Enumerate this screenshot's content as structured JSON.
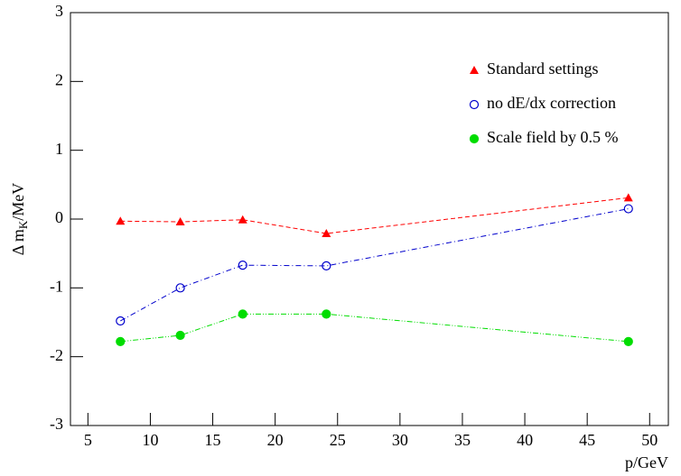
{
  "chart_data": {
    "type": "line",
    "ylabel": [
      "Δ m",
      "K",
      "/MeV"
    ],
    "xlabel": "p/GeV",
    "xlim": [
      3.6,
      51.5
    ],
    "xticks": [
      5,
      10,
      15,
      20,
      25,
      30,
      35,
      40,
      45,
      50
    ],
    "ylim": [
      -3,
      3
    ],
    "yticks": [
      -3,
      -2,
      -1,
      0,
      1,
      2,
      3
    ],
    "legend": "upper right",
    "series": [
      {
        "name": "Standard settings",
        "color": "#ff0000",
        "marker": "triangle",
        "dash": "5,3",
        "x": [
          7.6,
          12.4,
          17.4,
          24.1,
          48.3
        ],
        "values": [
          -0.03,
          -0.04,
          -0.01,
          -0.21,
          0.31
        ]
      },
      {
        "name": "no dE/dx correction",
        "color": "#0000cc",
        "marker": "open-circle",
        "dash": "6,3,1,3",
        "x": [
          7.6,
          12.4,
          17.4,
          24.1,
          48.3
        ],
        "values": [
          -1.48,
          -1.0,
          -0.67,
          -0.68,
          0.15
        ]
      },
      {
        "name": "Scale field by 0.5 %",
        "color": "#00dd00",
        "marker": "circle",
        "dash": "6,2,1,2,1,2",
        "x": [
          7.6,
          12.4,
          17.4,
          24.1,
          48.3
        ],
        "values": [
          -1.78,
          -1.69,
          -1.38,
          -1.38,
          -1.78
        ]
      }
    ]
  }
}
